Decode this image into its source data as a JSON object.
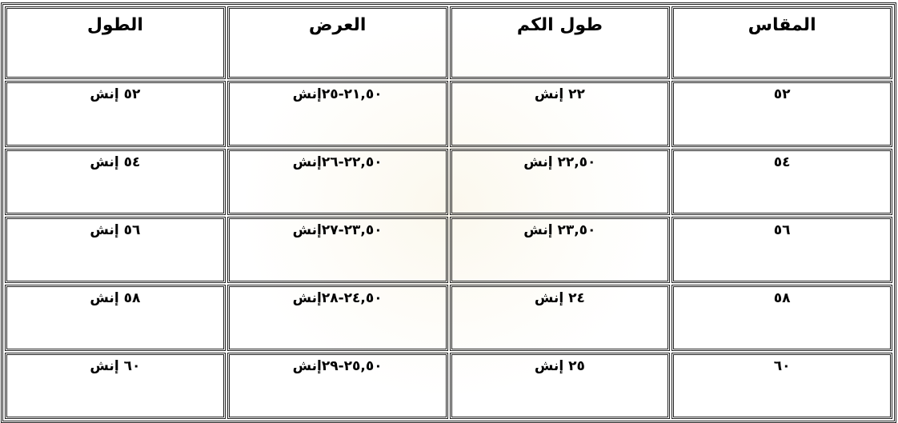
{
  "table": {
    "headers": [
      "المقاس",
      "طول الكم",
      "العرض",
      "الطول"
    ],
    "rows": [
      [
        "٥٢",
        "٢٢ إنش",
        "٢١,٥٠-٢٥إنش",
        "٥٢ إنش"
      ],
      [
        "٥٤",
        "٢٢,٥٠ إنش",
        "٢٢,٥٠-٢٦إنش",
        "٥٤ إنش"
      ],
      [
        "٥٦",
        "٢٣,٥٠ إنش",
        "٢٣,٥٠-٢٧إنش",
        "٥٦ إنش"
      ],
      [
        "٥٨",
        "٢٤ إنش",
        "٢٤,٥٠-٢٨إنش",
        "٥٨ إنش"
      ],
      [
        "٦٠",
        "٢٥ إنش",
        "٢٥,٥٠-٢٩إنش",
        "٦٠ إنش"
      ]
    ]
  }
}
